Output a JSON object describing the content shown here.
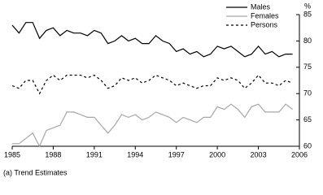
{
  "chart_data": {
    "type": "line",
    "y_label": "%",
    "footnote": "(a) Trend Estimates",
    "x": [
      1985,
      1985.5,
      1986,
      1986.5,
      1987,
      1987.5,
      1988,
      1988.5,
      1989,
      1989.5,
      1990,
      1990.5,
      1991,
      1991.5,
      1992,
      1992.5,
      1993,
      1993.5,
      1994,
      1994.5,
      1995,
      1995.5,
      1996,
      1996.5,
      1997,
      1997.5,
      1998,
      1998.5,
      1999,
      1999.5,
      2000,
      2000.5,
      2001,
      2001.5,
      2002,
      2002.5,
      2003,
      2003.5,
      2004,
      2004.5,
      2005,
      2005.5
    ],
    "series": [
      {
        "name": "Males",
        "color": "#000000",
        "dash": false,
        "values": [
          83,
          81.5,
          83.5,
          83.5,
          80.5,
          82,
          82.5,
          81,
          82,
          81.5,
          81.5,
          81,
          82,
          81.5,
          79.5,
          80,
          81,
          80,
          80.5,
          79.5,
          79.5,
          81,
          80,
          79.5,
          78,
          78.5,
          77.5,
          78,
          77,
          77.5,
          79,
          78.5,
          79,
          78,
          77,
          77.5,
          79,
          77.5,
          78,
          77,
          77.5,
          77.5
        ]
      },
      {
        "name": "Females",
        "color": "#a6a6a6",
        "dash": false,
        "values": [
          60.5,
          60.5,
          61.5,
          62.5,
          60,
          63,
          63.5,
          64,
          66.5,
          66.5,
          66,
          65.5,
          65.5,
          64,
          62.5,
          64,
          66,
          65.5,
          66,
          65,
          65.5,
          66.5,
          66,
          65.5,
          64.5,
          65.5,
          65,
          64.5,
          65.5,
          65.5,
          67.5,
          67,
          68,
          67,
          65.5,
          67.5,
          68,
          66.5,
          66.5,
          66.5,
          68,
          67
        ]
      },
      {
        "name": "Persons",
        "color": "#000000",
        "dash": true,
        "values": [
          71.5,
          71,
          72.5,
          72.5,
          70,
          72.5,
          73.5,
          72.5,
          73.5,
          73.5,
          73.5,
          73,
          73.5,
          72.5,
          71,
          71.5,
          73,
          72.5,
          73,
          72,
          72.5,
          73.5,
          73,
          72.5,
          71.5,
          72,
          71.5,
          71,
          71.5,
          71.5,
          73,
          72.5,
          73,
          72.5,
          71,
          72,
          73.5,
          72,
          72,
          71.5,
          72.5,
          72
        ]
      }
    ],
    "xlim": [
      1985,
      2006
    ],
    "xticks": [
      1985,
      1988,
      1991,
      1994,
      1997,
      2000,
      2003,
      2006
    ],
    "ylim": [
      60,
      85
    ],
    "yticks": [
      60,
      65,
      70,
      75,
      80,
      85
    ],
    "legend": "top-right"
  }
}
